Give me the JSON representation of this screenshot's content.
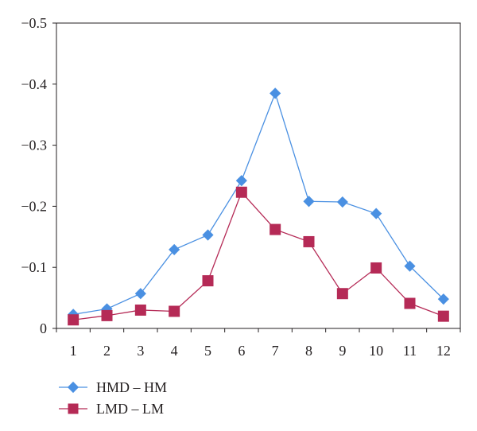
{
  "chart_data": {
    "type": "line",
    "title": "",
    "xlabel": "",
    "ylabel": "",
    "categories": [
      "1",
      "2",
      "3",
      "4",
      "5",
      "6",
      "7",
      "8",
      "9",
      "10",
      "11",
      "12"
    ],
    "y_ticks": [
      "0",
      "−0.1",
      "−0.2",
      "−0.3",
      "−0.4",
      "−0.5"
    ],
    "y_tick_values": [
      0,
      -0.1,
      -0.2,
      -0.3,
      -0.4,
      -0.5
    ],
    "ylim": [
      0,
      -0.5
    ],
    "y_axis_inverted": true,
    "grid": false,
    "legend_position": "bottom-left",
    "series": [
      {
        "name": "HMD – HM",
        "color": "#4a90e2",
        "marker": "diamond",
        "values": [
          -0.023,
          -0.032,
          -0.057,
          -0.129,
          -0.153,
          -0.242,
          -0.385,
          -0.208,
          -0.207,
          -0.188,
          -0.102,
          -0.048
        ]
      },
      {
        "name": "LMD – LM",
        "color": "#b52a56",
        "marker": "square",
        "values": [
          -0.014,
          -0.021,
          -0.03,
          -0.028,
          -0.078,
          -0.223,
          -0.162,
          -0.142,
          -0.057,
          -0.099,
          -0.041,
          -0.02
        ]
      }
    ]
  }
}
